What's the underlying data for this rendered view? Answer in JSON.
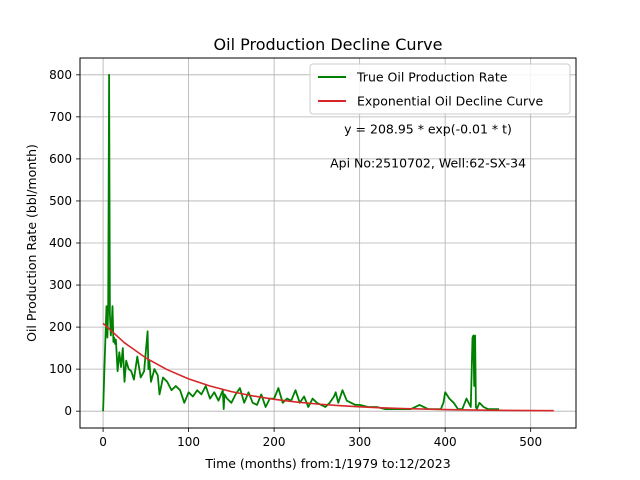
{
  "chart_data": {
    "type": "line",
    "title": "Oil Production Decline Curve",
    "xlabel": "Time (months) from:1/1979 to:12/2023",
    "ylabel": "Oil Production Rate (bbl/month)",
    "xlim": [
      -27,
      553
    ],
    "ylim": [
      -40,
      840
    ],
    "xticks": [
      0,
      100,
      200,
      300,
      400,
      500
    ],
    "yticks": [
      0,
      100,
      200,
      300,
      400,
      500,
      600,
      700,
      800
    ],
    "grid": true,
    "legend_position": "top-right",
    "annotations": [
      {
        "text": "y = 208.95 * exp(-0.01 * t)",
        "x": 380,
        "y": 660
      },
      {
        "text": "Api No:2510702, Well:62-SX-34",
        "x": 380,
        "y": 580
      }
    ],
    "series": [
      {
        "name": "True Oil Production Rate",
        "color": "#008000",
        "x": [
          0,
          2,
          4,
          5,
          6,
          7,
          8,
          9,
          10,
          11,
          12,
          13,
          14,
          15,
          17,
          19,
          21,
          23,
          25,
          27,
          30,
          33,
          36,
          40,
          44,
          48,
          52,
          53,
          54,
          56,
          60,
          64,
          66,
          70,
          75,
          80,
          85,
          90,
          95,
          100,
          105,
          110,
          115,
          120,
          125,
          130,
          135,
          140,
          141,
          142,
          145,
          150,
          155,
          160,
          165,
          170,
          175,
          180,
          185,
          190,
          195,
          200,
          205,
          210,
          215,
          220,
          225,
          230,
          235,
          240,
          245,
          250,
          255,
          260,
          265,
          270,
          272,
          275,
          280,
          285,
          290,
          295,
          300,
          310,
          320,
          330,
          340,
          350,
          360,
          370,
          380,
          390,
          395,
          398,
          400,
          405,
          410,
          415,
          420,
          425,
          430,
          432,
          433,
          434,
          435,
          436,
          437,
          440,
          445,
          450,
          455,
          460,
          463
        ],
        "y": [
          0,
          130,
          250,
          175,
          250,
          800,
          230,
          180,
          200,
          250,
          165,
          175,
          160,
          170,
          95,
          140,
          105,
          150,
          70,
          120,
          100,
          95,
          75,
          130,
          80,
          95,
          190,
          100,
          120,
          70,
          100,
          85,
          40,
          80,
          70,
          50,
          60,
          50,
          20,
          45,
          35,
          50,
          40,
          60,
          30,
          45,
          25,
          50,
          5,
          40,
          30,
          20,
          40,
          55,
          20,
          45,
          20,
          15,
          40,
          10,
          30,
          30,
          55,
          20,
          30,
          25,
          50,
          20,
          35,
          10,
          30,
          20,
          15,
          10,
          20,
          35,
          45,
          20,
          50,
          25,
          20,
          15,
          15,
          10,
          10,
          5,
          5,
          5,
          5,
          15,
          5,
          5,
          5,
          20,
          45,
          30,
          20,
          5,
          5,
          30,
          10,
          175,
          180,
          60,
          180,
          10,
          5,
          20,
          10,
          5,
          5,
          5,
          5
        ]
      },
      {
        "name": "Exponential Oil Decline Curve",
        "color": "#d62728",
        "function": {
          "a": 208.95,
          "b": 0.01
        },
        "x": [
          0,
          25,
          50,
          75,
          100,
          125,
          150,
          175,
          200,
          225,
          250,
          275,
          300,
          325,
          350,
          375,
          400,
          425,
          450,
          475,
          500,
          527
        ]
      }
    ]
  }
}
